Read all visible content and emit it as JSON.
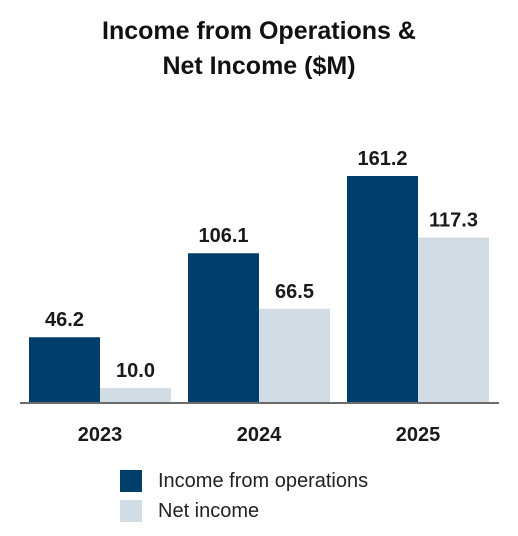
{
  "chart_data": {
    "type": "bar",
    "title_lines": [
      "Income from Operations &",
      "Net Income ($M)"
    ],
    "categories": [
      "2023",
      "2024",
      "2025"
    ],
    "series": [
      {
        "name": "Income from operations",
        "values": [
          46.2,
          106.1,
          161.2
        ],
        "labels": [
          "46.2",
          "106.1",
          "161.2"
        ],
        "color": "#003f6b"
      },
      {
        "name": "Net income",
        "values": [
          10.0,
          66.5,
          117.3
        ],
        "labels": [
          "10.0",
          "66.5",
          "117.3"
        ],
        "color": "#d2dce4"
      }
    ],
    "ylim": [
      0,
      161.2
    ],
    "grid": false,
    "legend_position": "bottom"
  }
}
